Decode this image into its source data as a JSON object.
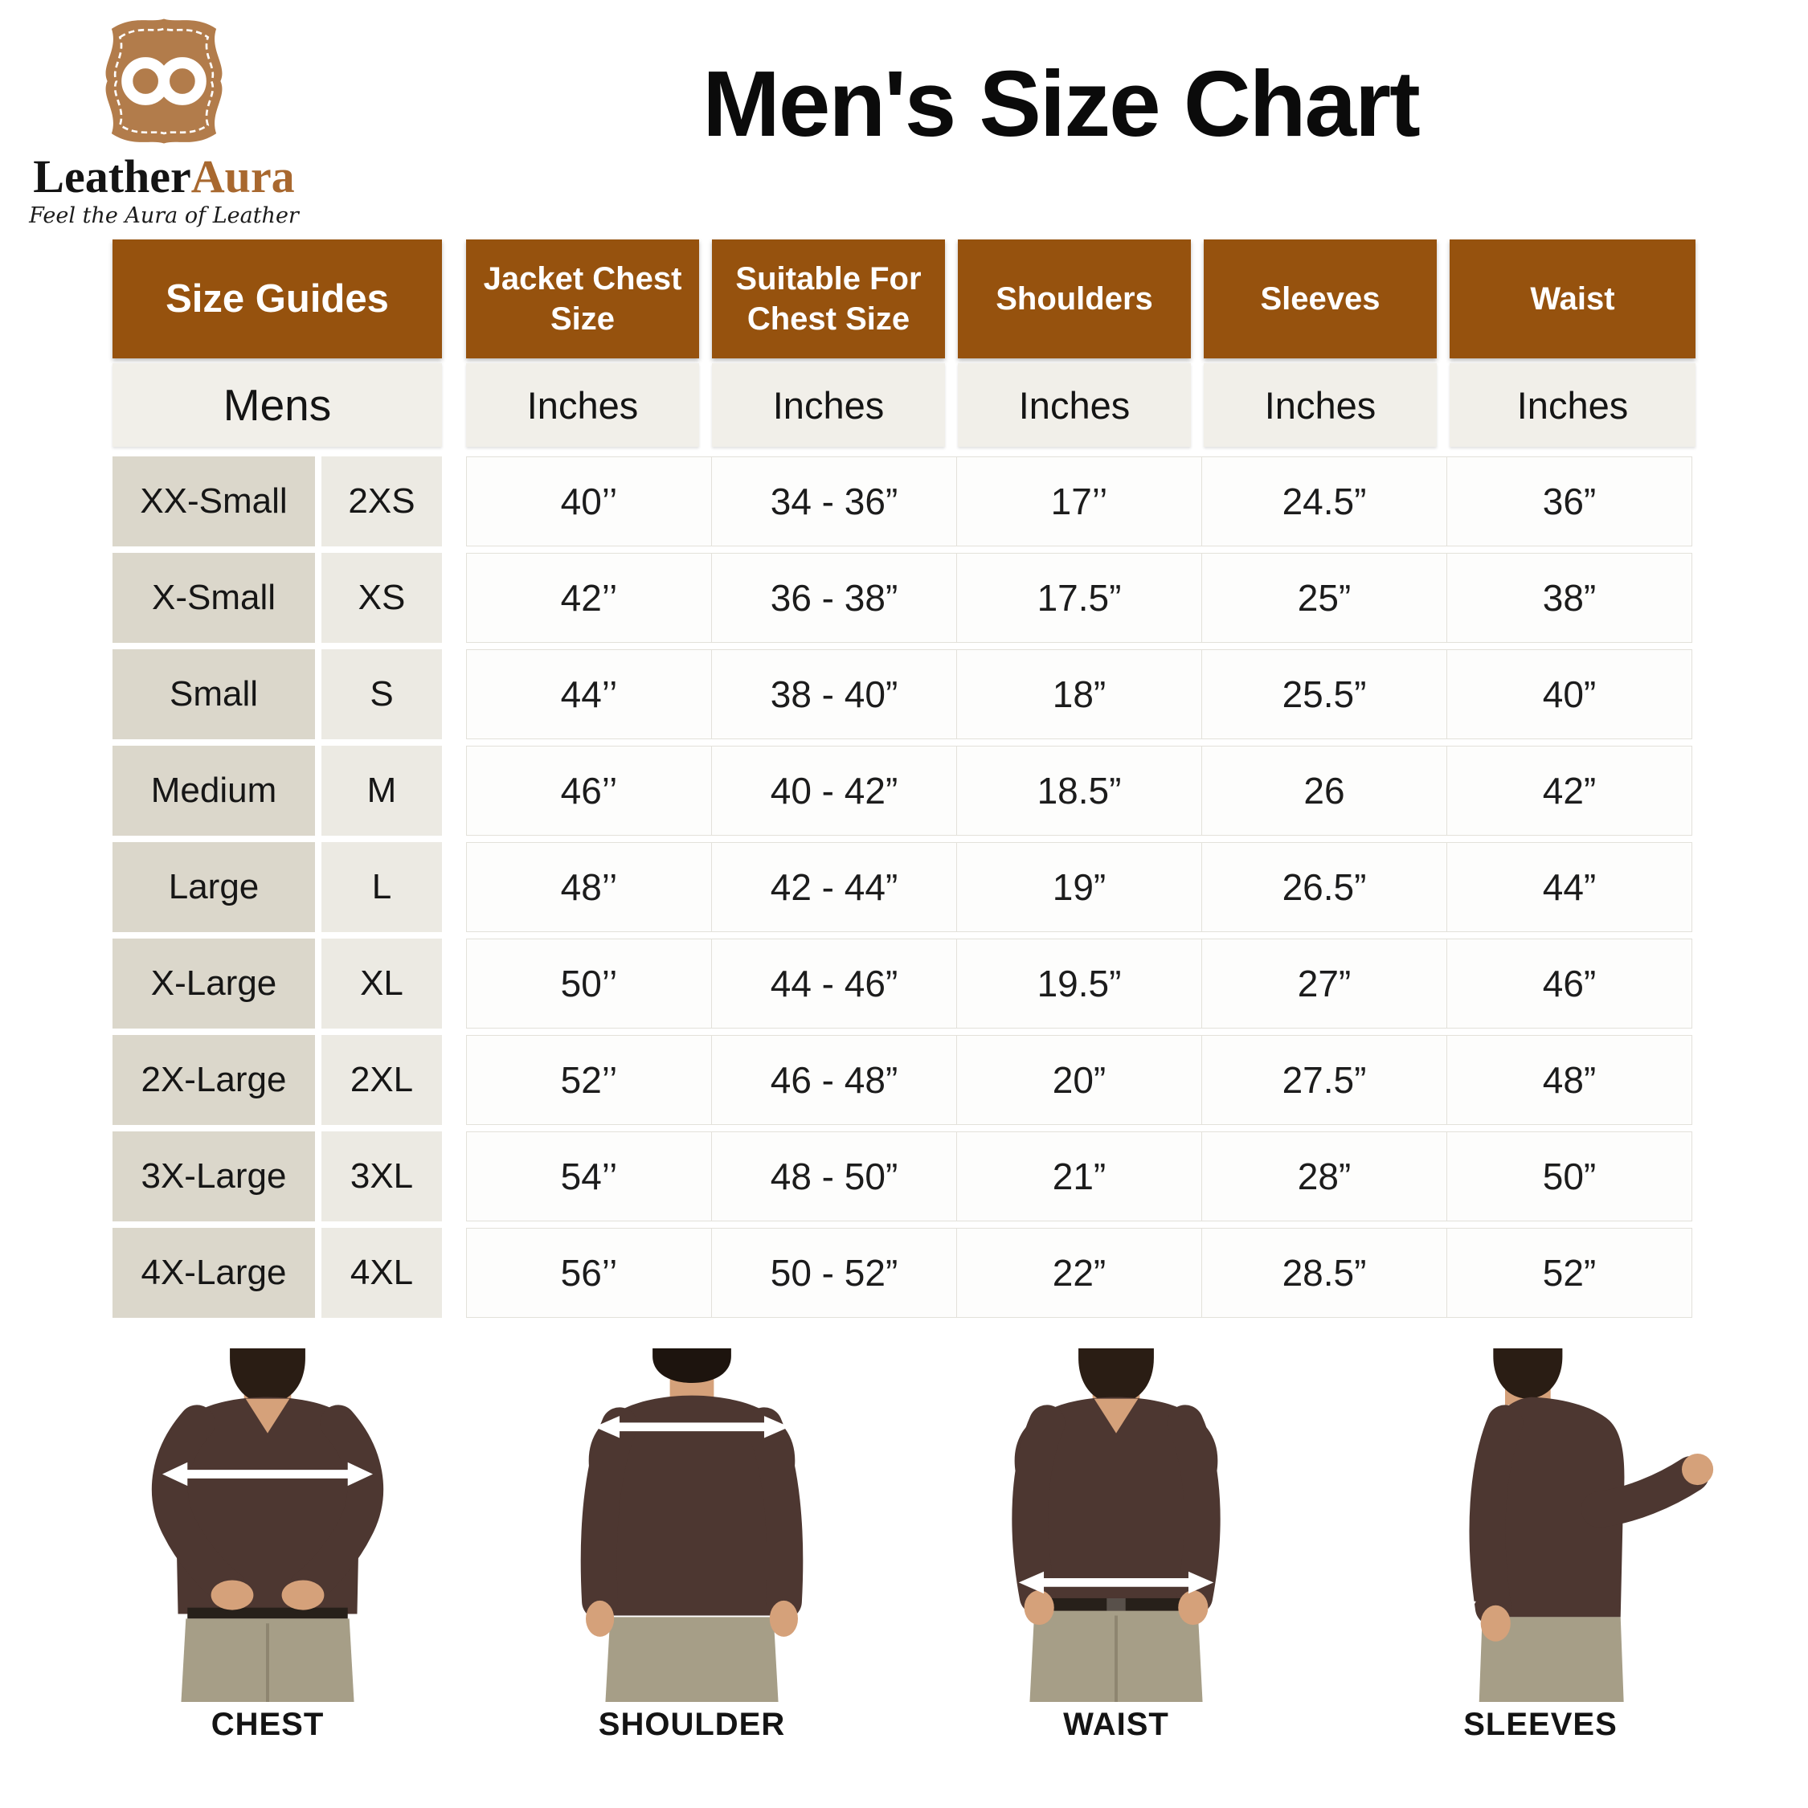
{
  "logo": {
    "brand_leather": "Leather",
    "brand_aura": "Aura",
    "tagline": "Feel the Aura of Leather",
    "icon": "leather-shield-infinity-icon"
  },
  "title": "Men's Size Chart",
  "chart_data": {
    "type": "table",
    "title": "Men's Size Chart",
    "column_groups": [
      "Size Guides",
      "Jacket Chest Size",
      "Suitable For Chest Size",
      "Shoulders",
      "Sleeves",
      "Waist"
    ],
    "units_row": [
      "Mens",
      "Inches",
      "Inches",
      "Inches",
      "Inches",
      "Inches"
    ],
    "rows": [
      [
        "XX-Small",
        "2XS",
        "40’’",
        "34 - 36”",
        "17’’",
        "24.5”",
        "36”"
      ],
      [
        "X-Small",
        "XS",
        "42’’",
        "36 - 38”",
        "17.5”",
        "25”",
        "38”"
      ],
      [
        "Small",
        "S",
        "44’’",
        "38 - 40”",
        "18”",
        "25.5”",
        "40”"
      ],
      [
        "Medium",
        "M",
        "46’’",
        "40 - 42”",
        "18.5”",
        "26",
        "42”"
      ],
      [
        "Large",
        "L",
        "48’’",
        "42 - 44”",
        "19”",
        "26.5”",
        "44”"
      ],
      [
        "X-Large",
        "XL",
        "50’’",
        "44 - 46”",
        "19.5”",
        "27”",
        "46”"
      ],
      [
        "2X-Large",
        "2XL",
        "52’’",
        "46 - 48”",
        "20”",
        "27.5”",
        "48”"
      ],
      [
        "3X-Large",
        "3XL",
        "54’’",
        "48 - 50”",
        "21”",
        "28”",
        "50”"
      ],
      [
        "4X-Large",
        "4XL",
        "56’’",
        "50 - 52”",
        "22”",
        "28.5”",
        "52”"
      ]
    ]
  },
  "measurement_guides": [
    {
      "label": "CHEST",
      "view": "front",
      "arrow": "horizontal-across-chest"
    },
    {
      "label": "SHOULDER",
      "view": "back",
      "arrow": "horizontal-across-shoulders"
    },
    {
      "label": "WAIST",
      "view": "front",
      "arrow": "horizontal-across-waist"
    },
    {
      "label": "SLEEVES",
      "view": "side",
      "arrow": "vertical-along-sleeve"
    }
  ],
  "colors": {
    "header_brown": "#96520e",
    "row_name_bg": "#dbd7cb",
    "row_code_bg": "#eceae3",
    "subheader_bg": "#f1efe9",
    "cell_bg": "#fdfdfc",
    "cell_border": "#e3e1da",
    "logo_shield": "#b27c4b",
    "brand_accent": "#a8682f",
    "sweater": "#4d3731",
    "pants": "#a69e87",
    "skin": "#d5a17a"
  }
}
